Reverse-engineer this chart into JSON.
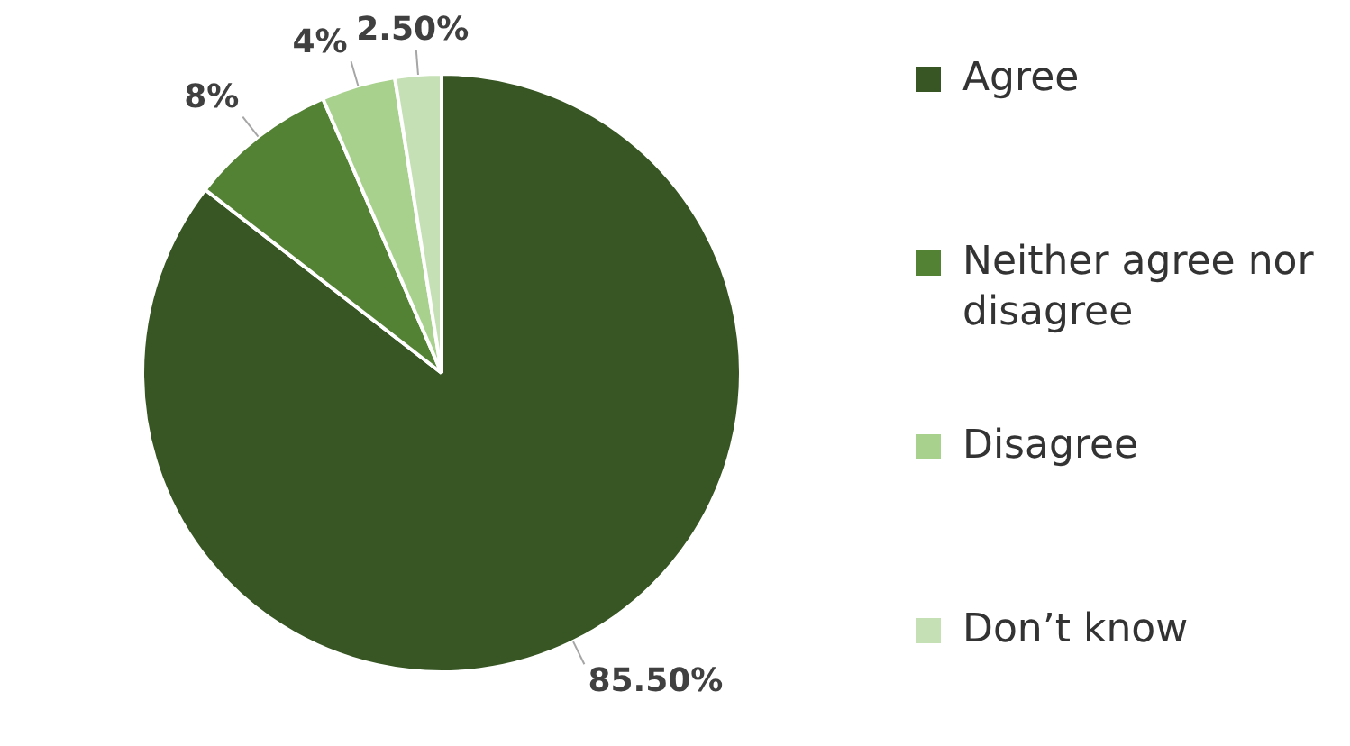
{
  "chart_data": {
    "type": "pie",
    "categories": [
      "Agree",
      "Neither agree nor disagree",
      "Disagree",
      "Don’t know"
    ],
    "values": [
      85.5,
      8,
      4,
      2.5
    ],
    "value_labels": [
      "85.50%",
      "8%",
      "4%",
      "2.50%"
    ],
    "colors": [
      "#375623",
      "#548235",
      "#a9d18e",
      "#c5e0b4"
    ],
    "legend": "right"
  }
}
